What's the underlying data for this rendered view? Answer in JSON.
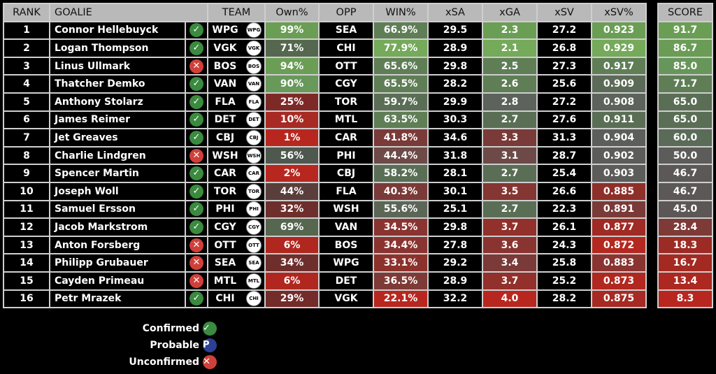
{
  "headers": {
    "rank": "RANK",
    "goalie": "GOALIE",
    "team": "TEAM",
    "own": "Own%",
    "opp": "OPP",
    "win": "WIN%",
    "xsa": "xSA",
    "xga": "xGA",
    "xsv": "xSV",
    "xsvpct": "xSV%",
    "score": "SCORE"
  },
  "status_glyphs": {
    "confirmed": "✓",
    "unconfirmed": "✕",
    "probable": "P"
  },
  "status_colors": {
    "confirmed": "#3a8a3f",
    "unconfirmed": "#d0403a",
    "probable": "#2d3f93"
  },
  "rows": [
    {
      "rank": "1",
      "goalie": "Connor Hellebuyck",
      "status": "confirmed",
      "team": "WPG",
      "logo": "WPG",
      "own": "99%",
      "opp": "SEA",
      "win": "66.9%",
      "xsa": "29.5",
      "xga": "2.3",
      "xsv": "27.2",
      "xsvpct": "0.923",
      "score": "91.7",
      "colors": {
        "own": "#6b9e55",
        "win": "#5f7e56",
        "xga": "#6b9e55",
        "xsvpct": "#6b9e55",
        "score": "#6b9e55"
      }
    },
    {
      "rank": "2",
      "goalie": "Logan Thompson",
      "status": "confirmed",
      "team": "VGK",
      "logo": "VGK",
      "own": "71%",
      "opp": "CHI",
      "win": "77.9%",
      "xsa": "28.9",
      "xga": "2.1",
      "xsv": "26.8",
      "xsvpct": "0.929",
      "score": "86.7",
      "colors": {
        "own": "#55684f",
        "win": "#74aa5a",
        "xga": "#74aa5a",
        "xsvpct": "#74aa5a",
        "score": "#6a9c55"
      }
    },
    {
      "rank": "3",
      "goalie": "Linus Ullmark",
      "status": "unconfirmed",
      "team": "BOS",
      "logo": "BOS",
      "own": "94%",
      "opp": "OTT",
      "win": "65.6%",
      "xsa": "29.8",
      "xga": "2.5",
      "xsv": "27.3",
      "xsvpct": "0.917",
      "score": "85.0",
      "colors": {
        "own": "#6b9e55",
        "win": "#5f7e56",
        "xga": "#5f7e56",
        "xsvpct": "#5f7e56",
        "score": "#67965a"
      }
    },
    {
      "rank": "4",
      "goalie": "Thatcher Demko",
      "status": "confirmed",
      "team": "VAN",
      "logo": "VAN",
      "own": "90%",
      "opp": "CGY",
      "win": "65.5%",
      "xsa": "28.2",
      "xga": "2.6",
      "xsv": "25.6",
      "xsvpct": "0.909",
      "score": "71.7",
      "colors": {
        "own": "#68985a",
        "win": "#5f7e56",
        "xga": "#5f7e56",
        "xsvpct": "#5c6b58",
        "score": "#5f7e56"
      }
    },
    {
      "rank": "5",
      "goalie": "Anthony Stolarz",
      "status": "confirmed",
      "team": "FLA",
      "logo": "FLA",
      "own": "25%",
      "opp": "TOR",
      "win": "59.7%",
      "xsa": "29.9",
      "xga": "2.8",
      "xsv": "27.2",
      "xsvpct": "0.908",
      "score": "65.0",
      "colors": {
        "own": "#7d2a27",
        "win": "#5a6e56",
        "xga": "#5c635a",
        "xsvpct": "#5c635a",
        "score": "#5a6e56"
      }
    },
    {
      "rank": "6",
      "goalie": "James Reimer",
      "status": "confirmed",
      "team": "DET",
      "logo": "DET",
      "own": "10%",
      "opp": "MTL",
      "win": "63.5%",
      "xsa": "30.3",
      "xga": "2.7",
      "xsv": "27.6",
      "xsvpct": "0.911",
      "score": "65.0",
      "colors": {
        "own": "#a72a24",
        "win": "#5f7e56",
        "xga": "#5a6e56",
        "xsvpct": "#5a6e56",
        "score": "#5a6e56"
      }
    },
    {
      "rank": "7",
      "goalie": "Jet Greaves",
      "status": "confirmed",
      "team": "CBJ",
      "logo": "CBJ",
      "own": "1%",
      "opp": "CAR",
      "win": "41.8%",
      "xsa": "34.6",
      "xga": "3.3",
      "xsv": "31.3",
      "xsvpct": "0.904",
      "score": "60.0",
      "colors": {
        "own": "#b8271f",
        "win": "#7a3a38",
        "xga": "#7a3a38",
        "xsvpct": "#5c5e5b",
        "score": "#5a6b58"
      }
    },
    {
      "rank": "8",
      "goalie": "Charlie Lindgren",
      "status": "unconfirmed",
      "team": "WSH",
      "logo": "WSH",
      "own": "56%",
      "opp": "PHI",
      "win": "44.4%",
      "xsa": "31.8",
      "xga": "3.1",
      "xsv": "28.7",
      "xsvpct": "0.902",
      "score": "50.0",
      "colors": {
        "own": "#4e584e",
        "win": "#6d4a48",
        "xga": "#6d4a48",
        "xsvpct": "#5c5c5a",
        "score": "#5c5c5a"
      }
    },
    {
      "rank": "9",
      "goalie": "Spencer Martin",
      "status": "confirmed",
      "team": "CAR",
      "logo": "CAR",
      "own": "2%",
      "opp": "CBJ",
      "win": "58.2%",
      "xsa": "28.1",
      "xga": "2.7",
      "xsv": "25.4",
      "xsvpct": "0.903",
      "score": "46.7",
      "colors": {
        "own": "#b8271f",
        "win": "#5a6e56",
        "xga": "#5a6e56",
        "xsvpct": "#5c5c5a",
        "score": "#5c5858"
      }
    },
    {
      "rank": "10",
      "goalie": "Joseph Woll",
      "status": "confirmed",
      "team": "TOR",
      "logo": "TOR",
      "own": "44%",
      "opp": "FLA",
      "win": "40.3%",
      "xsa": "30.1",
      "xga": "3.5",
      "xsv": "26.6",
      "xsvpct": "0.885",
      "score": "46.7",
      "colors": {
        "own": "#5a3e3c",
        "win": "#7a3a38",
        "xga": "#843632",
        "xsvpct": "#8e2f2a",
        "score": "#5c5858"
      }
    },
    {
      "rank": "11",
      "goalie": "Samuel Ersson",
      "status": "confirmed",
      "team": "PHI",
      "logo": "PHI",
      "own": "32%",
      "opp": "WSH",
      "win": "55.6%",
      "xsa": "25.1",
      "xga": "2.7",
      "xsv": "22.3",
      "xsvpct": "0.891",
      "score": "45.0",
      "colors": {
        "own": "#6e2f2c",
        "win": "#5c6657",
        "xga": "#5a6e56",
        "xsvpct": "#7a3a38",
        "score": "#5c5656"
      }
    },
    {
      "rank": "12",
      "goalie": "Jacob Markstrom",
      "status": "confirmed",
      "team": "CGY",
      "logo": "CGY",
      "own": "69%",
      "opp": "VAN",
      "win": "34.5%",
      "xsa": "29.8",
      "xga": "3.7",
      "xsv": "26.1",
      "xsvpct": "0.877",
      "score": "28.4",
      "colors": {
        "own": "#56664f",
        "win": "#8a3431",
        "xga": "#92302b",
        "xsvpct": "#a02a24",
        "score": "#7e3a36"
      }
    },
    {
      "rank": "13",
      "goalie": "Anton Forsberg",
      "status": "unconfirmed",
      "team": "OTT",
      "logo": "OTT",
      "own": "6%",
      "opp": "BOS",
      "win": "34.4%",
      "xsa": "27.8",
      "xga": "3.6",
      "xsv": "24.3",
      "xsvpct": "0.872",
      "score": "18.3",
      "colors": {
        "own": "#b0271f",
        "win": "#8a3431",
        "xga": "#8a3431",
        "xsvpct": "#b4281f",
        "score": "#9c2b25"
      }
    },
    {
      "rank": "14",
      "goalie": "Philipp Grubauer",
      "status": "unconfirmed",
      "team": "SEA",
      "logo": "SEA",
      "own": "34%",
      "opp": "WPG",
      "win": "33.1%",
      "xsa": "29.2",
      "xga": "3.4",
      "xsv": "25.8",
      "xsvpct": "0.883",
      "score": "16.7",
      "colors": {
        "own": "#6e2f2c",
        "win": "#8c322d",
        "xga": "#7a3a38",
        "xsvpct": "#8a3431",
        "score": "#a22a23"
      }
    },
    {
      "rank": "15",
      "goalie": "Cayden Primeau",
      "status": "unconfirmed",
      "team": "MTL",
      "logo": "MTL",
      "own": "6%",
      "opp": "DET",
      "win": "36.5%",
      "xsa": "28.9",
      "xga": "3.7",
      "xsv": "25.2",
      "xsvpct": "0.873",
      "score": "13.4",
      "colors": {
        "own": "#b0271f",
        "win": "#7e3a36",
        "xga": "#92302b",
        "xsvpct": "#b0281f",
        "score": "#ac2820"
      }
    },
    {
      "rank": "16",
      "goalie": "Petr Mrazek",
      "status": "confirmed",
      "team": "CHI",
      "logo": "CHI",
      "own": "29%",
      "opp": "VGK",
      "win": "22.1%",
      "xsa": "32.2",
      "xga": "4.0",
      "xsv": "28.2",
      "xsvpct": "0.875",
      "score": "8.3",
      "colors": {
        "own": "#732c29",
        "win": "#b8271f",
        "xga": "#b8271f",
        "xsvpct": "#a62a23",
        "score": "#b8271f"
      }
    }
  ],
  "legend": [
    {
      "label": "Confirmed",
      "status": "confirmed"
    },
    {
      "label": "Probable",
      "status": "probable"
    },
    {
      "label": "Unconfirmed",
      "status": "unconfirmed"
    }
  ]
}
